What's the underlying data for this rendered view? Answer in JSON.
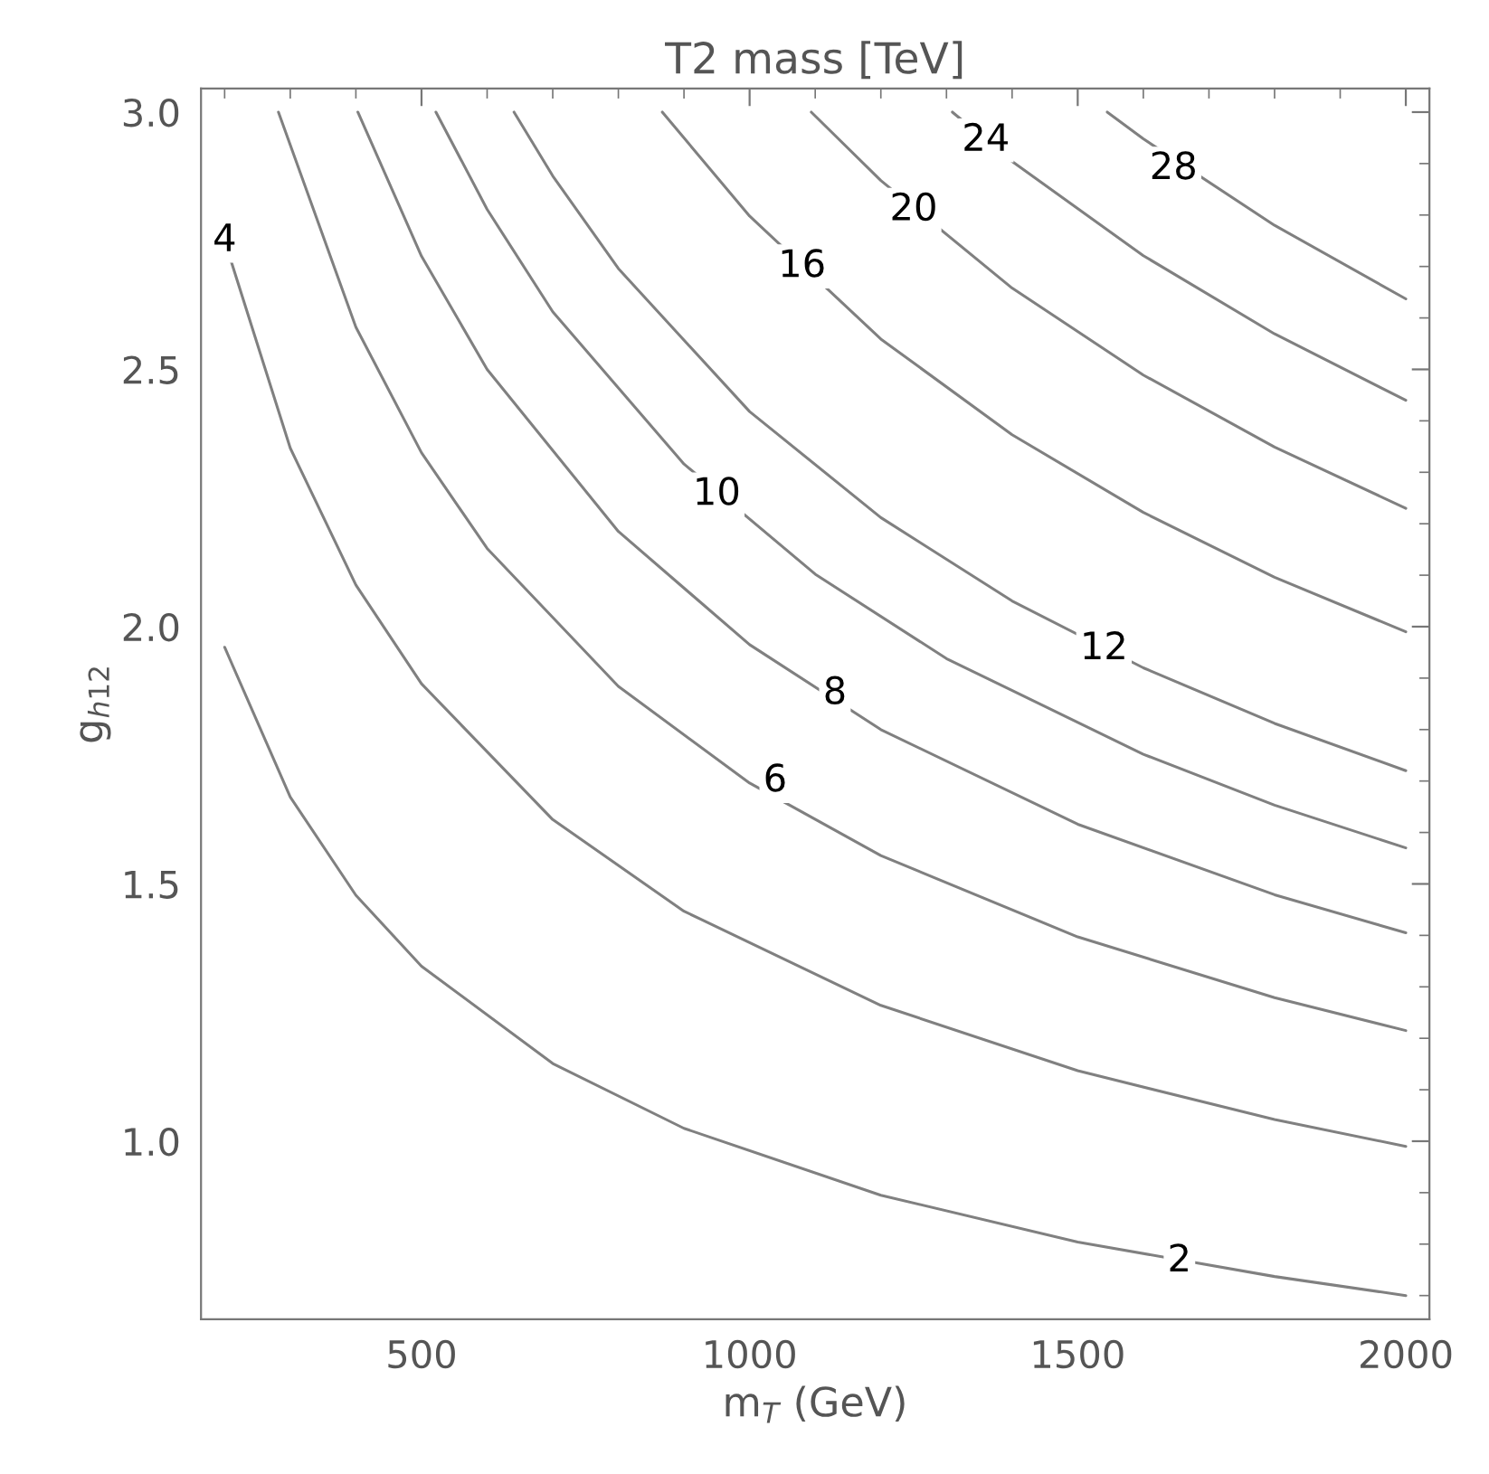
{
  "chart_data": {
    "type": "line",
    "title": "T2 mass [TeV]",
    "xlabel": "m$_{T}$ (GeV)",
    "ylabel": "g$_{h12}$",
    "xlim": [
      164,
      2036
    ],
    "ylim": [
      0.654,
      3.046
    ],
    "xticks": [
      500,
      1000,
      1500,
      2000
    ],
    "yticks": [
      {
        "value": 1.0,
        "label": "1.0"
      },
      {
        "value": 1.5,
        "label": "1.5"
      },
      {
        "value": 2.0,
        "label": "2.0"
      },
      {
        "value": 2.5,
        "label": "2.5"
      },
      {
        "value": 3.0,
        "label": "3.0"
      }
    ],
    "grid": false,
    "legend": false,
    "marker": "none",
    "line_style": "solid",
    "series": [
      {
        "color": "#808080",
        "x": [
          200,
          300,
          400,
          500,
          700,
          900,
          1200,
          1500,
          1800,
          2000
        ],
        "values": [
          1.96,
          1.669,
          1.478,
          1.34,
          1.151,
          1.025,
          0.895,
          0.804,
          0.737,
          0.7
        ]
      },
      {
        "color": "#808080",
        "x": [
          200,
          300,
          400,
          500,
          700,
          900,
          1200,
          1500,
          1800,
          2000
        ],
        "values": [
          2.75,
          2.347,
          2.081,
          1.889,
          1.625,
          1.447,
          1.264,
          1.137,
          1.042,
          0.99
        ]
      },
      {
        "color": "#808080",
        "x": [
          282,
          400,
          500,
          600,
          800,
          1000,
          1200,
          1500,
          1800,
          2000
        ],
        "values": [
          3.0,
          2.582,
          2.338,
          2.152,
          1.884,
          1.696,
          1.555,
          1.397,
          1.279,
          1.215
        ]
      },
      {
        "color": "#808080",
        "x": [
          403,
          500,
          600,
          800,
          1000,
          1200,
          1500,
          1800,
          2000
        ],
        "values": [
          3.0,
          2.72,
          2.5,
          2.185,
          1.965,
          1.8,
          1.616,
          1.479,
          1.405
        ]
      },
      {
        "color": "#808080",
        "x": [
          522,
          600,
          700,
          900,
          1100,
          1300,
          1600,
          1800,
          2000
        ],
        "values": [
          3.0,
          2.811,
          2.612,
          2.316,
          2.102,
          1.938,
          1.752,
          1.653,
          1.57
        ]
      },
      {
        "color": "#808080",
        "x": [
          641,
          700,
          800,
          1000,
          1200,
          1400,
          1600,
          1800,
          2000
        ],
        "values": [
          3.0,
          2.876,
          2.696,
          2.418,
          2.212,
          2.05,
          1.92,
          1.812,
          1.72
        ]
      },
      {
        "color": "#808080",
        "x": [
          867,
          1000,
          1200,
          1400,
          1600,
          1800,
          2000
        ],
        "values": [
          3.0,
          2.798,
          2.559,
          2.373,
          2.222,
          2.096,
          1.99
        ]
      },
      {
        "color": "#808080",
        "x": [
          1094,
          1200,
          1400,
          1600,
          1800,
          2000
        ],
        "values": [
          3.0,
          2.867,
          2.658,
          2.489,
          2.349,
          2.23
        ]
      },
      {
        "color": "#808080",
        "x": [
          1309,
          1400,
          1600,
          1800,
          2000
        ],
        "values": [
          3.0,
          2.904,
          2.721,
          2.569,
          2.44
        ]
      },
      {
        "color": "#808080",
        "x": [
          1545,
          1600,
          1800,
          2000
        ],
        "values": [
          3.0,
          2.948,
          2.78,
          2.637
        ]
      }
    ],
    "annotations": [
      {
        "text": "2",
        "x": 1655,
        "y": 0.767
      },
      {
        "text": "4",
        "x": 200,
        "y": 2.75
      },
      {
        "text": "6",
        "x": 1039,
        "y": 1.7
      },
      {
        "text": "8",
        "x": 1130,
        "y": 1.87
      },
      {
        "text": "10",
        "x": 950,
        "y": 2.257
      },
      {
        "text": "12",
        "x": 1540,
        "y": 1.957
      },
      {
        "text": "16",
        "x": 1080,
        "y": 2.7
      },
      {
        "text": "20",
        "x": 1250,
        "y": 2.81
      },
      {
        "text": "24",
        "x": 1360,
        "y": 2.945
      },
      {
        "text": "28",
        "x": 1646,
        "y": 2.89
      }
    ]
  }
}
